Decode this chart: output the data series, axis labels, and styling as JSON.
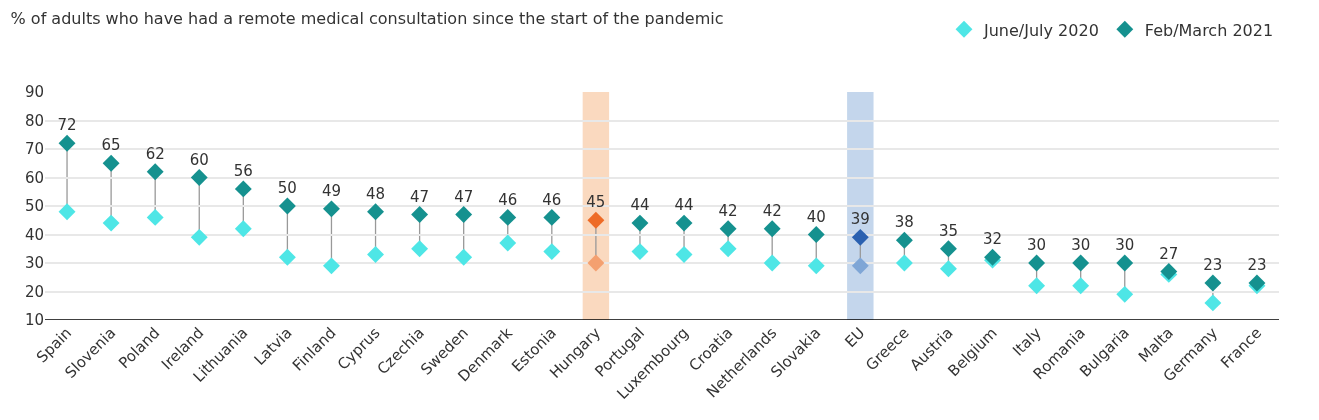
{
  "chart_data": {
    "type": "scatter",
    "title": "% of adults who have had a remote medical consultation since the start of the pandemic",
    "categories": [
      "Spain",
      "Slovenia",
      "Poland",
      "Ireland",
      "Lithuania",
      "Latvia",
      "Finland",
      "Cyprus",
      "Czechia",
      "Sweden",
      "Denmark",
      "Estonia",
      "Hungary",
      "Portugal",
      "Luxembourg",
      "Croatia",
      "Netherlands",
      "Slovakia",
      "EU",
      "Greece",
      "Austria",
      "Belgium",
      "Italy",
      "Romania",
      "Bulgaria",
      "Malta",
      "Germany",
      "France"
    ],
    "series": [
      {
        "name": "June/July 2020",
        "color": "#4ee6e6",
        "colors": [
          "#4ee6e6",
          "#4ee6e6",
          "#4ee6e6",
          "#4ee6e6",
          "#4ee6e6",
          "#4ee6e6",
          "#4ee6e6",
          "#4ee6e6",
          "#4ee6e6",
          "#4ee6e6",
          "#4ee6e6",
          "#4ee6e6",
          "#f4a070",
          "#4ee6e6",
          "#4ee6e6",
          "#4ee6e6",
          "#4ee6e6",
          "#4ee6e6",
          "#7fa6d6",
          "#4ee6e6",
          "#4ee6e6",
          "#4ee6e6",
          "#4ee6e6",
          "#4ee6e6",
          "#4ee6e6",
          "#4ee6e6",
          "#4ee6e6",
          "#4ee6e6"
        ],
        "values": [
          48,
          44,
          46,
          39,
          42,
          32,
          29,
          33,
          35,
          32,
          37,
          34,
          30,
          34,
          33,
          35,
          30,
          29,
          29,
          30,
          28,
          31,
          22,
          22,
          19,
          26,
          16,
          22
        ]
      },
      {
        "name": "Feb/March 2021",
        "color": "#15918f",
        "colors": [
          "#15918f",
          "#15918f",
          "#15918f",
          "#15918f",
          "#15918f",
          "#15918f",
          "#15918f",
          "#15918f",
          "#15918f",
          "#15918f",
          "#15918f",
          "#15918f",
          "#ee6b26",
          "#15918f",
          "#15918f",
          "#15918f",
          "#15918f",
          "#15918f",
          "#2a60b0",
          "#15918f",
          "#15918f",
          "#15918f",
          "#15918f",
          "#15918f",
          "#15918f",
          "#15918f",
          "#15918f",
          "#15918f"
        ],
        "values": [
          72,
          65,
          62,
          60,
          56,
          50,
          49,
          48,
          47,
          47,
          46,
          46,
          45,
          44,
          44,
          42,
          42,
          40,
          39,
          38,
          35,
          32,
          30,
          30,
          30,
          27,
          23,
          23
        ],
        "value_labels": [
          "72",
          "65",
          "62",
          "60",
          "56",
          "50",
          "49",
          "48",
          "47",
          "47",
          "46",
          "46",
          "45",
          "44",
          "44",
          "42",
          "42",
          "40",
          "39",
          "38",
          "35",
          "32",
          "30",
          "30",
          "30",
          "27",
          "23",
          "23"
        ]
      }
    ],
    "bands": [
      {
        "axis": "x",
        "from": "Hungary",
        "to": "Hungary",
        "color": "#fad9bf"
      },
      {
        "axis": "x",
        "from": "EU",
        "to": "EU",
        "color": "#c4d6ec"
      }
    ],
    "ylim": [
      10,
      90
    ],
    "yticks": [
      10,
      20,
      30,
      40,
      50,
      60,
      70,
      80,
      90
    ],
    "grid": "y",
    "legend": "top right",
    "marker": "diamond"
  }
}
